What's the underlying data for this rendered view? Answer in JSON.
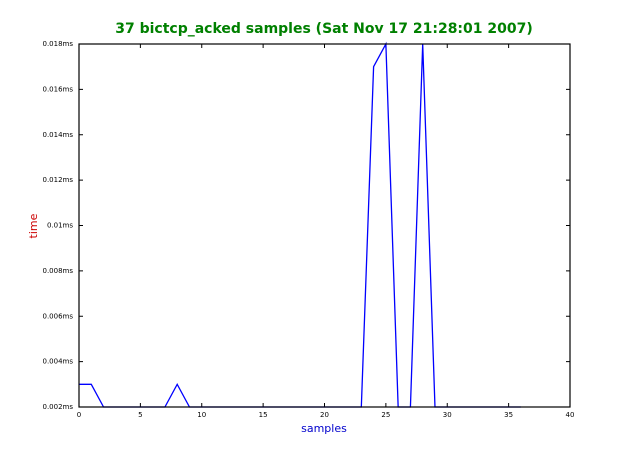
{
  "chart_data": {
    "type": "line",
    "title": "37 bictcp_acked samples (Sat Nov 17 21:28:01 2007)",
    "x_label": "samples",
    "y_label": "time",
    "x": [
      0,
      1,
      2,
      3,
      4,
      5,
      6,
      7,
      8,
      9,
      10,
      11,
      12,
      13,
      14,
      15,
      16,
      17,
      18,
      19,
      20,
      21,
      22,
      23,
      24,
      25,
      26,
      27,
      28,
      29,
      30,
      31,
      32,
      33,
      34,
      35,
      36
    ],
    "series": [
      {
        "name": "bictcp_acked",
        "color": "#0000ff",
        "values": [
          0.003,
          0.003,
          0.002,
          0.002,
          0.002,
          0.002,
          0.002,
          0.002,
          0.003,
          0.002,
          0.002,
          0.002,
          0.002,
          0.002,
          0.002,
          0.002,
          0.002,
          0.002,
          0.002,
          0.002,
          0.002,
          0.002,
          0.002,
          0.002,
          0.017,
          0.018,
          0.002,
          0.002,
          0.018,
          0.002,
          0.002,
          0.002,
          0.002,
          0.002,
          0.002,
          0.002,
          0.002
        ]
      }
    ],
    "xlim": [
      0,
      40
    ],
    "xticks": [
      0,
      5,
      10,
      15,
      20,
      25,
      30,
      35,
      40
    ],
    "ylim": [
      0.002,
      0.018
    ],
    "yticks": [
      {
        "value": 0.002,
        "label": "0.002ms"
      },
      {
        "value": 0.004,
        "label": "0.004ms"
      },
      {
        "value": 0.006,
        "label": "0.006ms"
      },
      {
        "value": 0.008,
        "label": "0.008ms"
      },
      {
        "value": 0.01,
        "label": "0.01ms"
      },
      {
        "value": 0.012,
        "label": "0.012ms"
      },
      {
        "value": 0.014,
        "label": "0.014ms"
      },
      {
        "value": 0.016,
        "label": "0.016ms"
      },
      {
        "value": 0.018,
        "label": "0.018ms"
      }
    ],
    "grid": false
  }
}
